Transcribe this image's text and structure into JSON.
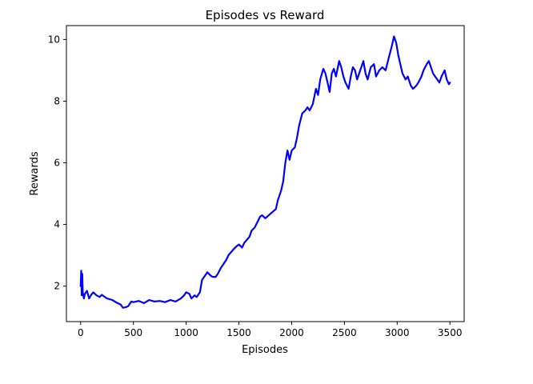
{
  "chart_data": {
    "type": "line",
    "title": "Episodes vs Reward",
    "xlabel": "Episodes",
    "ylabel": "Rewards",
    "xlim": [
      -135,
      3635
    ],
    "ylim": [
      0.85,
      10.45
    ],
    "xticks": [
      0,
      500,
      1000,
      1500,
      2000,
      2500,
      3000,
      3500
    ],
    "xtick_labels": [
      "0",
      "500",
      "1000",
      "1500",
      "2000",
      "2500",
      "3000",
      "3500"
    ],
    "yticks": [
      2,
      4,
      6,
      8,
      10
    ],
    "ytick_labels": [
      "2",
      "4",
      "6",
      "8",
      "10"
    ],
    "grid": false,
    "legend": "none",
    "series": [
      {
        "color": "#0000ff",
        "x": [
          0,
          5,
          10,
          15,
          20,
          25,
          30,
          40,
          60,
          80,
          100,
          120,
          150,
          180,
          200,
          250,
          300,
          350,
          380,
          400,
          430,
          450,
          480,
          500,
          550,
          600,
          650,
          700,
          750,
          800,
          850,
          900,
          950,
          980,
          1000,
          1030,
          1050,
          1080,
          1100,
          1130,
          1150,
          1180,
          1200,
          1230,
          1250,
          1280,
          1300,
          1330,
          1350,
          1380,
          1400,
          1450,
          1480,
          1500,
          1530,
          1550,
          1600,
          1620,
          1650,
          1700,
          1720,
          1750,
          1800,
          1850,
          1870,
          1900,
          1920,
          1940,
          1960,
          1980,
          2000,
          2030,
          2050,
          2070,
          2100,
          2130,
          2150,
          2170,
          2200,
          2230,
          2250,
          2270,
          2300,
          2320,
          2340,
          2360,
          2380,
          2400,
          2420,
          2450,
          2470,
          2490,
          2510,
          2540,
          2560,
          2580,
          2600,
          2620,
          2650,
          2680,
          2700,
          2720,
          2750,
          2780,
          2800,
          2830,
          2860,
          2890,
          2920,
          2950,
          2970,
          2990,
          3010,
          3030,
          3050,
          3080,
          3100,
          3130,
          3150,
          3180,
          3200,
          3230,
          3250,
          3280,
          3300,
          3320,
          3340,
          3360,
          3380,
          3400,
          3420,
          3450,
          3470,
          3490,
          3500
        ],
        "y": [
          2.0,
          2.5,
          1.7,
          2.4,
          1.8,
          1.7,
          1.6,
          1.75,
          1.85,
          1.6,
          1.72,
          1.8,
          1.7,
          1.65,
          1.72,
          1.6,
          1.55,
          1.45,
          1.4,
          1.3,
          1.32,
          1.35,
          1.5,
          1.48,
          1.52,
          1.45,
          1.55,
          1.5,
          1.52,
          1.48,
          1.55,
          1.5,
          1.6,
          1.7,
          1.8,
          1.75,
          1.6,
          1.7,
          1.65,
          1.8,
          2.2,
          2.35,
          2.45,
          2.35,
          2.3,
          2.3,
          2.4,
          2.6,
          2.7,
          2.85,
          3.0,
          3.2,
          3.3,
          3.35,
          3.25,
          3.4,
          3.6,
          3.8,
          3.9,
          4.25,
          4.3,
          4.2,
          4.35,
          4.5,
          4.8,
          5.1,
          5.4,
          6.0,
          6.4,
          6.1,
          6.4,
          6.5,
          6.8,
          7.2,
          7.6,
          7.7,
          7.8,
          7.7,
          7.9,
          8.4,
          8.2,
          8.7,
          9.05,
          8.9,
          8.6,
          8.3,
          8.9,
          9.05,
          8.8,
          9.3,
          9.1,
          8.8,
          8.6,
          8.4,
          8.8,
          9.1,
          9.0,
          8.7,
          9.0,
          9.3,
          8.9,
          8.7,
          9.1,
          9.2,
          8.8,
          9.0,
          9.1,
          9.0,
          9.4,
          9.8,
          10.1,
          9.9,
          9.5,
          9.2,
          8.9,
          8.7,
          8.8,
          8.5,
          8.4,
          8.5,
          8.6,
          8.8,
          9.0,
          9.2,
          9.3,
          9.1,
          8.9,
          8.8,
          8.7,
          8.6,
          8.8,
          9.0,
          8.7,
          8.55,
          8.6
        ]
      }
    ]
  }
}
